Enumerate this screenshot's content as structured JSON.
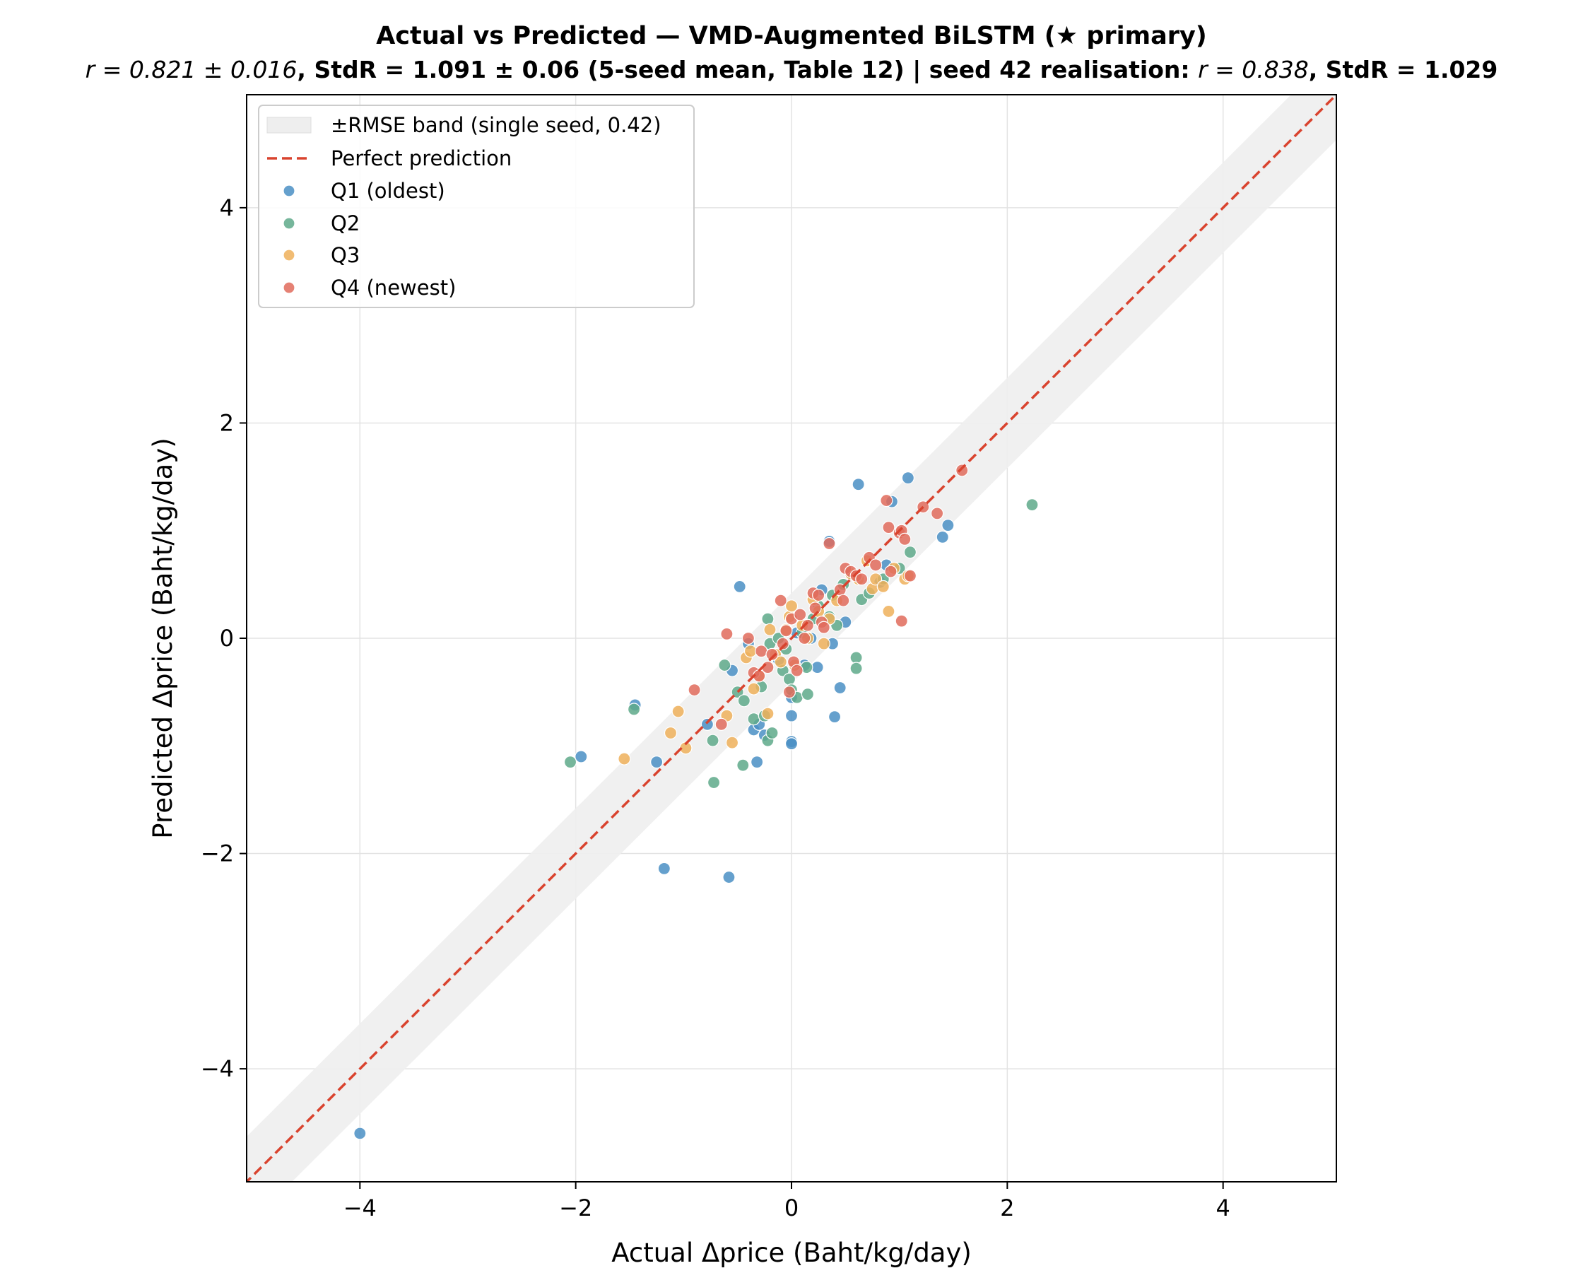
{
  "chart_data": {
    "type": "scatter",
    "title": "Actual vs Predicted — VMD-Augmented BiLSTM (★ primary)",
    "subtitle": {
      "r_mean_prefix": "r = 0.821 ± 0.016",
      "stdr_mean": ", StdR  = 1.091 ± 0.06 (5-seed mean, Table 12)  |  seed 42 realisation: ",
      "r_seed": "r = 0.838",
      "stdr_seed": ", StdR  = 1.029"
    },
    "xlabel": "Actual Δprice (Baht/kg/day)",
    "ylabel": "Predicted Δprice (Baht/kg/day)",
    "xlim": [
      -5.05,
      5.05
    ],
    "ylim": [
      -5.05,
      5.05
    ],
    "xticks": [
      -4,
      -2,
      0,
      2,
      4
    ],
    "yticks": [
      -4,
      -2,
      0,
      2,
      4
    ],
    "xtick_labels": [
      "−4",
      "−2",
      "0",
      "2",
      "4"
    ],
    "ytick_labels": [
      "−4",
      "−2",
      "0",
      "2",
      "4"
    ],
    "grid": true,
    "legend_position": "top-left",
    "band": {
      "label": "±RMSE band (single seed, 0.42)",
      "halfwidth": 0.42,
      "color": "#eeeeee"
    },
    "reference_line": {
      "label": "Perfect prediction",
      "color": "#d9432e"
    },
    "series": [
      {
        "name": "Q1 (oldest)",
        "color": "#4a8fc4",
        "points": [
          [
            -4.0,
            -4.6
          ],
          [
            -1.95,
            -1.1
          ],
          [
            -1.45,
            -0.62
          ],
          [
            -1.25,
            -1.15
          ],
          [
            -1.18,
            -2.14
          ],
          [
            -0.78,
            -0.8
          ],
          [
            -0.58,
            -2.22
          ],
          [
            -0.55,
            -0.3
          ],
          [
            -0.48,
            0.48
          ],
          [
            -0.4,
            -0.05
          ],
          [
            -0.35,
            -0.85
          ],
          [
            -0.32,
            -1.15
          ],
          [
            -0.3,
            -0.8
          ],
          [
            -0.25,
            -0.9
          ],
          [
            -0.12,
            -0.2
          ],
          [
            0.0,
            -0.72
          ],
          [
            0.0,
            -0.96
          ],
          [
            0.0,
            -0.98
          ],
          [
            0.0,
            -0.55
          ],
          [
            0.05,
            0.05
          ],
          [
            0.12,
            -0.25
          ],
          [
            0.18,
            0.0
          ],
          [
            0.24,
            -0.27
          ],
          [
            0.28,
            0.45
          ],
          [
            0.35,
            0.9
          ],
          [
            0.38,
            -0.05
          ],
          [
            0.4,
            -0.73
          ],
          [
            0.45,
            -0.46
          ],
          [
            0.62,
            1.43
          ],
          [
            0.88,
            0.68
          ],
          [
            0.93,
            1.27
          ],
          [
            1.08,
            1.49
          ],
          [
            1.4,
            0.94
          ],
          [
            1.45,
            1.05
          ],
          [
            0.5,
            0.15
          ],
          [
            0.82,
            0.52
          ]
        ]
      },
      {
        "name": "Q2",
        "color": "#5ea98a",
        "points": [
          [
            -2.05,
            -1.15
          ],
          [
            -1.46,
            -0.66
          ],
          [
            -0.72,
            -1.34
          ],
          [
            -0.62,
            -0.25
          ],
          [
            -0.73,
            -0.95
          ],
          [
            -0.5,
            -0.5
          ],
          [
            -0.45,
            -1.18
          ],
          [
            -0.44,
            -0.58
          ],
          [
            -0.35,
            -0.75
          ],
          [
            -0.28,
            -0.45
          ],
          [
            -0.25,
            -0.72
          ],
          [
            -0.22,
            0.18
          ],
          [
            -0.22,
            -0.95
          ],
          [
            -0.2,
            -0.05
          ],
          [
            -0.18,
            -0.88
          ],
          [
            -0.12,
            0.0
          ],
          [
            -0.08,
            -0.3
          ],
          [
            -0.05,
            -0.1
          ],
          [
            -0.02,
            -0.38
          ],
          [
            0.0,
            -0.48
          ],
          [
            0.05,
            -0.55
          ],
          [
            0.1,
            0.05
          ],
          [
            0.14,
            -0.27
          ],
          [
            0.2,
            0.18
          ],
          [
            0.25,
            0.3
          ],
          [
            0.35,
            0.2
          ],
          [
            0.38,
            0.4
          ],
          [
            0.42,
            0.12
          ],
          [
            0.48,
            0.5
          ],
          [
            0.55,
            0.6
          ],
          [
            0.6,
            -0.18
          ],
          [
            0.6,
            -0.28
          ],
          [
            0.65,
            0.36
          ],
          [
            0.72,
            0.42
          ],
          [
            0.85,
            0.55
          ],
          [
            1.0,
            0.65
          ],
          [
            1.1,
            0.8
          ],
          [
            2.23,
            1.24
          ],
          [
            0.15,
            -0.52
          ]
        ]
      },
      {
        "name": "Q3",
        "color": "#efb05a",
        "points": [
          [
            -1.55,
            -1.12
          ],
          [
            -1.12,
            -0.88
          ],
          [
            -1.05,
            -0.68
          ],
          [
            -0.98,
            -1.02
          ],
          [
            -0.6,
            -0.72
          ],
          [
            -0.55,
            -0.97
          ],
          [
            -0.42,
            -0.18
          ],
          [
            -0.38,
            -0.12
          ],
          [
            -0.35,
            -0.47
          ],
          [
            -0.3,
            -0.35
          ],
          [
            -0.22,
            -0.7
          ],
          [
            -0.2,
            0.08
          ],
          [
            -0.15,
            -0.15
          ],
          [
            -0.1,
            -0.22
          ],
          [
            -0.05,
            0.08
          ],
          [
            -0.02,
            0.2
          ],
          [
            0.0,
            0.3
          ],
          [
            0.03,
            -0.25
          ],
          [
            0.1,
            0.12
          ],
          [
            0.15,
            0.0
          ],
          [
            0.2,
            0.36
          ],
          [
            0.25,
            0.25
          ],
          [
            0.3,
            -0.05
          ],
          [
            0.35,
            0.18
          ],
          [
            0.42,
            0.35
          ],
          [
            0.55,
            0.6
          ],
          [
            0.75,
            0.46
          ],
          [
            0.78,
            0.55
          ],
          [
            0.85,
            0.48
          ],
          [
            0.9,
            0.25
          ],
          [
            0.95,
            0.65
          ],
          [
            1.05,
            0.55
          ],
          [
            1.08,
            0.58
          ],
          [
            0.7,
            0.72
          ],
          [
            0.62,
            0.55
          ]
        ]
      },
      {
        "name": "Q4 (newest)",
        "color": "#e06b5c",
        "points": [
          [
            -0.9,
            -0.48
          ],
          [
            -0.65,
            -0.8
          ],
          [
            -0.6,
            0.04
          ],
          [
            -0.4,
            0.0
          ],
          [
            -0.35,
            -0.32
          ],
          [
            -0.3,
            -0.35
          ],
          [
            -0.28,
            -0.12
          ],
          [
            -0.22,
            -0.27
          ],
          [
            -0.18,
            -0.15
          ],
          [
            -0.1,
            0.35
          ],
          [
            -0.08,
            -0.05
          ],
          [
            -0.05,
            0.07
          ],
          [
            -0.02,
            -0.5
          ],
          [
            0.0,
            0.18
          ],
          [
            0.02,
            -0.22
          ],
          [
            0.05,
            -0.3
          ],
          [
            0.08,
            0.22
          ],
          [
            0.12,
            0.0
          ],
          [
            0.15,
            0.12
          ],
          [
            0.2,
            0.42
          ],
          [
            0.22,
            0.28
          ],
          [
            0.25,
            0.4
          ],
          [
            0.28,
            0.15
          ],
          [
            0.3,
            0.1
          ],
          [
            0.35,
            0.88
          ],
          [
            0.45,
            0.45
          ],
          [
            0.48,
            0.35
          ],
          [
            0.5,
            0.65
          ],
          [
            0.55,
            0.62
          ],
          [
            0.6,
            0.58
          ],
          [
            0.65,
            0.55
          ],
          [
            0.72,
            0.75
          ],
          [
            0.78,
            0.68
          ],
          [
            0.88,
            1.28
          ],
          [
            0.9,
            1.03
          ],
          [
            0.92,
            0.62
          ],
          [
            1.0,
            0.98
          ],
          [
            1.02,
            1.0
          ],
          [
            1.05,
            0.92
          ],
          [
            1.1,
            0.58
          ],
          [
            1.02,
            0.16
          ],
          [
            1.22,
            1.22
          ],
          [
            1.35,
            1.16
          ],
          [
            1.58,
            1.56
          ]
        ]
      }
    ]
  }
}
